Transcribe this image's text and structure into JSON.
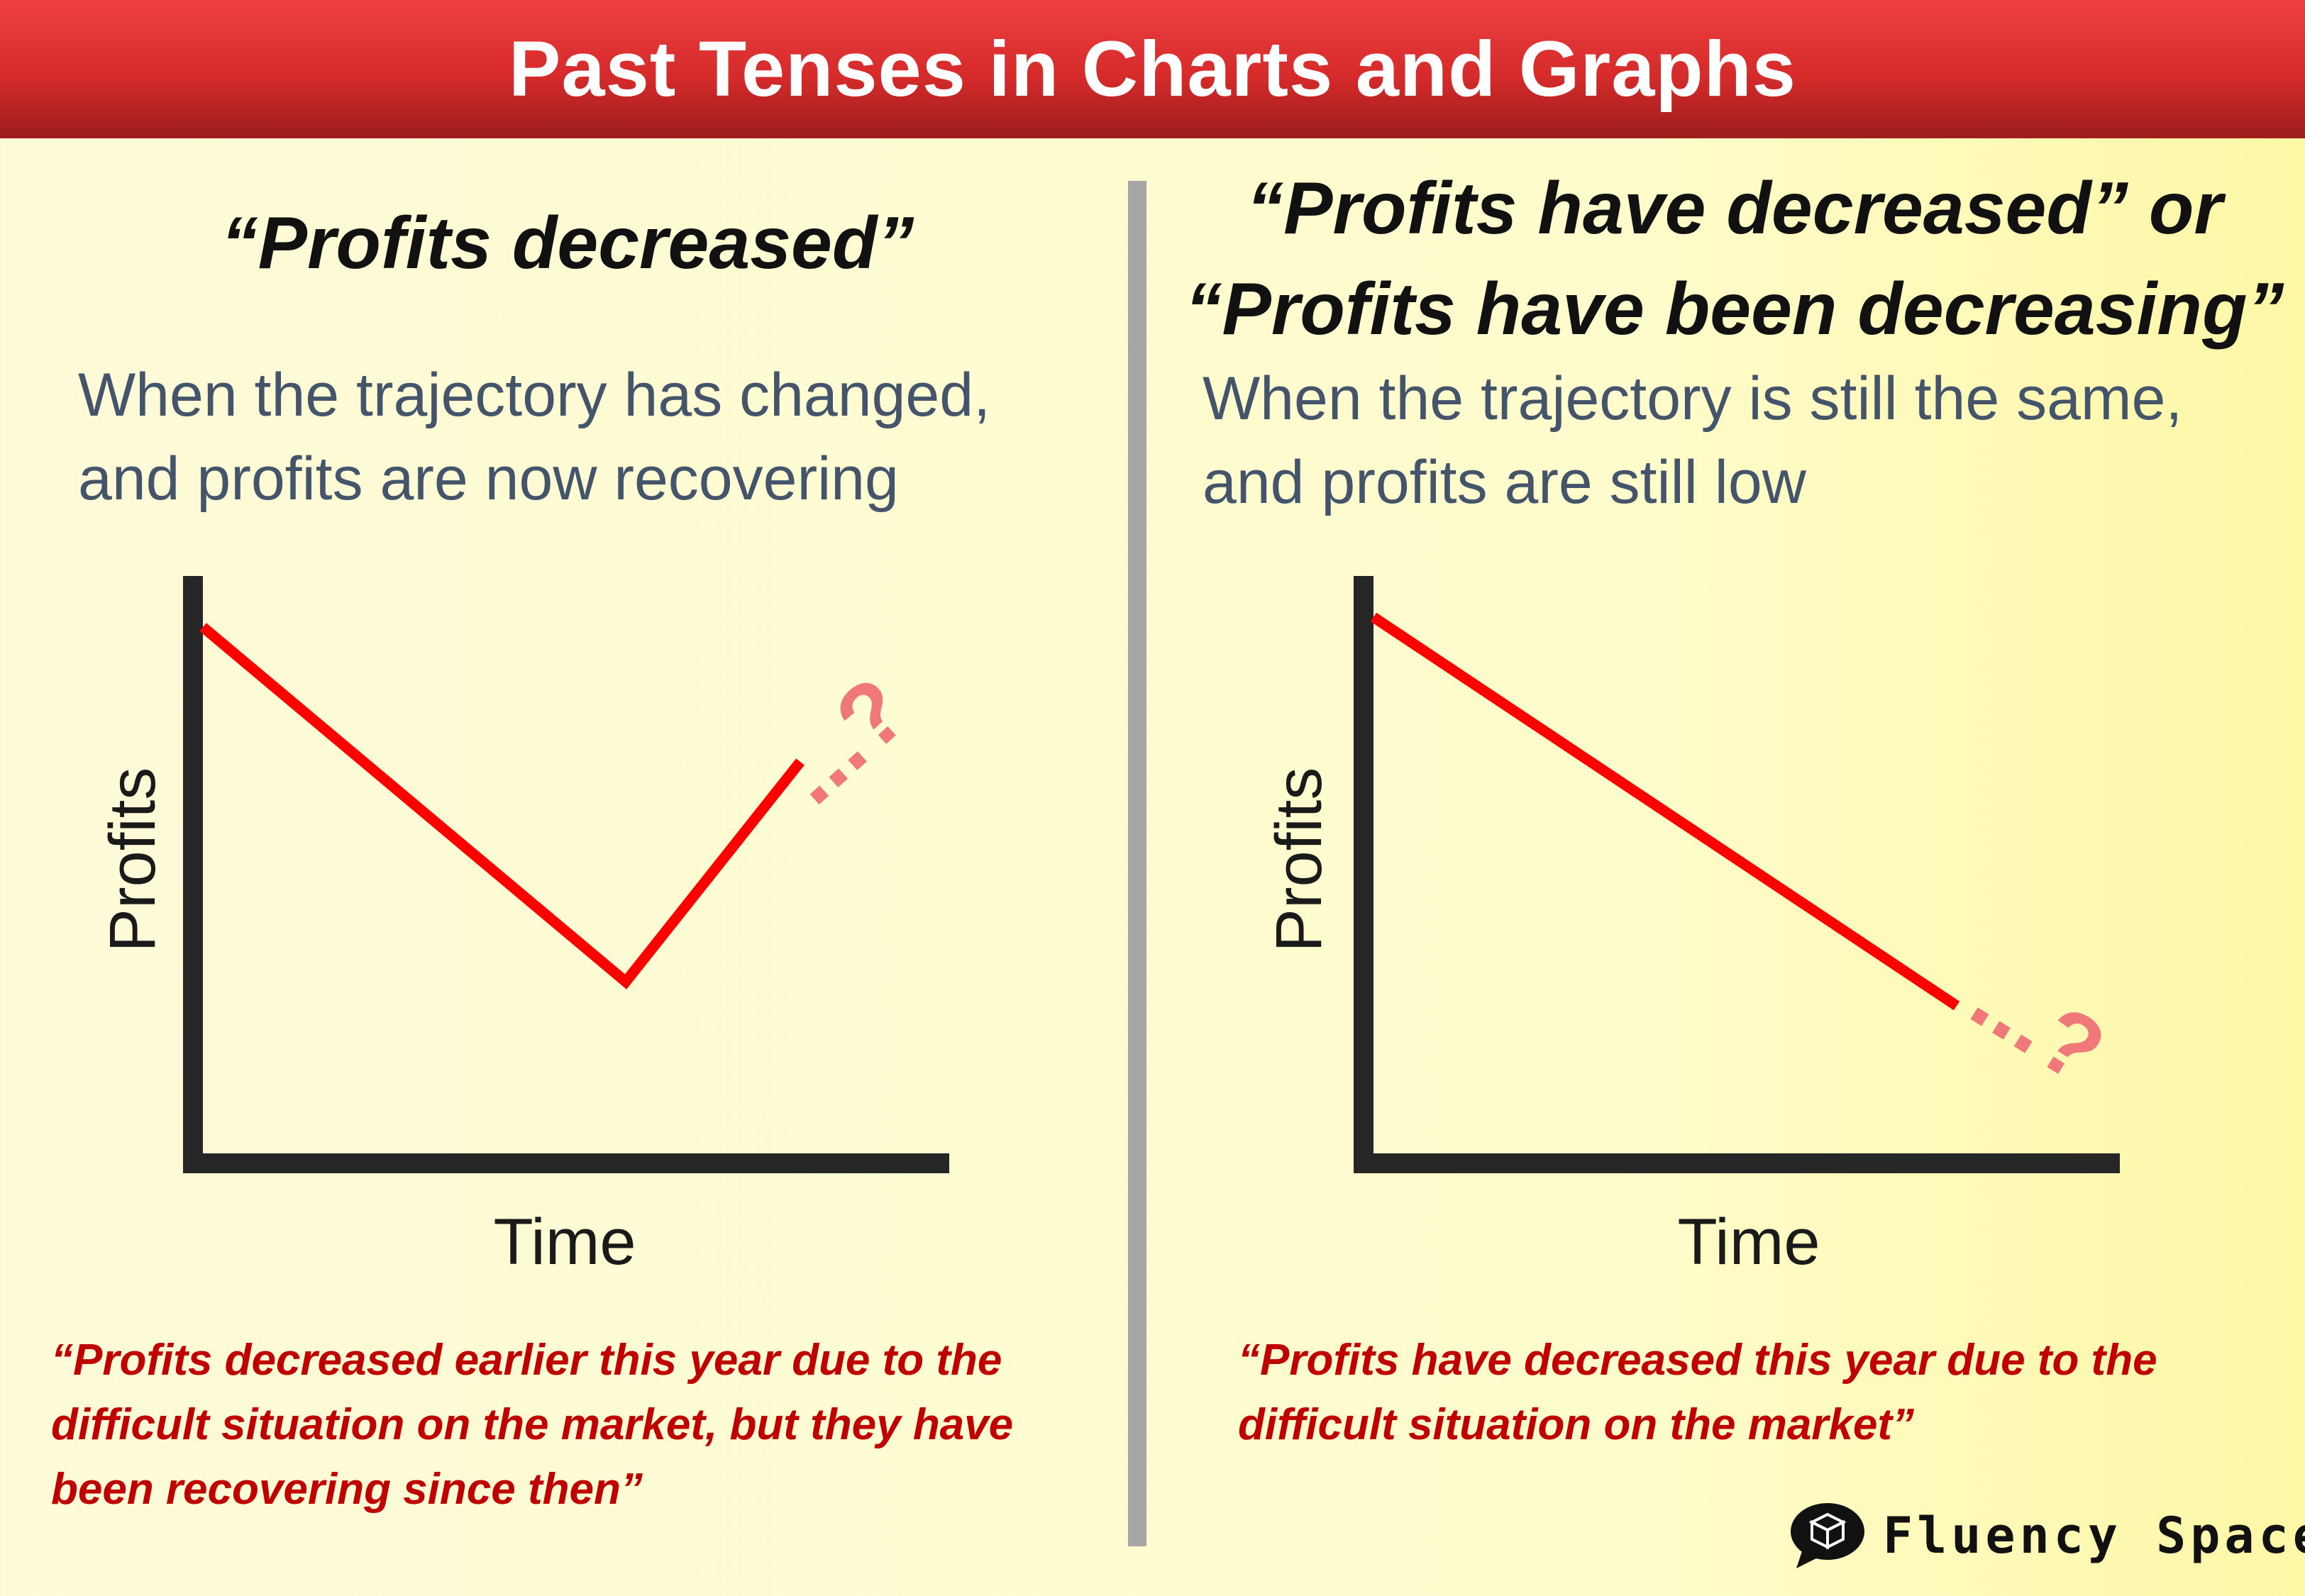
{
  "header": {
    "title": "Past Tenses in Charts and Graphs"
  },
  "left": {
    "heading_lines": [
      "“Profits decreased”"
    ],
    "description_lines": [
      "When the trajectory has changed,",
      "and profits are now recovering"
    ],
    "y_label": "Profits",
    "x_label": "Time",
    "continuation": "...?",
    "trend": [
      100,
      0,
      62
    ],
    "quote_lines": [
      "“Profits decreased earlier this year due to the",
      "difficult situation on the market, but they have",
      "been recovering since then”"
    ]
  },
  "right": {
    "heading_lines": [
      "“Profits have decreased” or",
      "“Profits have been decreasing”"
    ],
    "description_lines": [
      "When the trajectory is still the same,",
      "and profits are still low"
    ],
    "y_label": "Profits",
    "x_label": "Time",
    "continuation": "...?",
    "trend": [
      100,
      0
    ],
    "quote_lines": [
      "“Profits have decreased this year due to the",
      "difficult situation on the market”"
    ]
  },
  "logo": {
    "text": "Fluency Space",
    "icon": "speech-bubble-cube-icon"
  },
  "colors": {
    "header_red": "#d62b2b",
    "trend_line": "#ff0000",
    "continuation": "#f07878",
    "quote_text": "#c00000",
    "description_text": "#44546a"
  }
}
